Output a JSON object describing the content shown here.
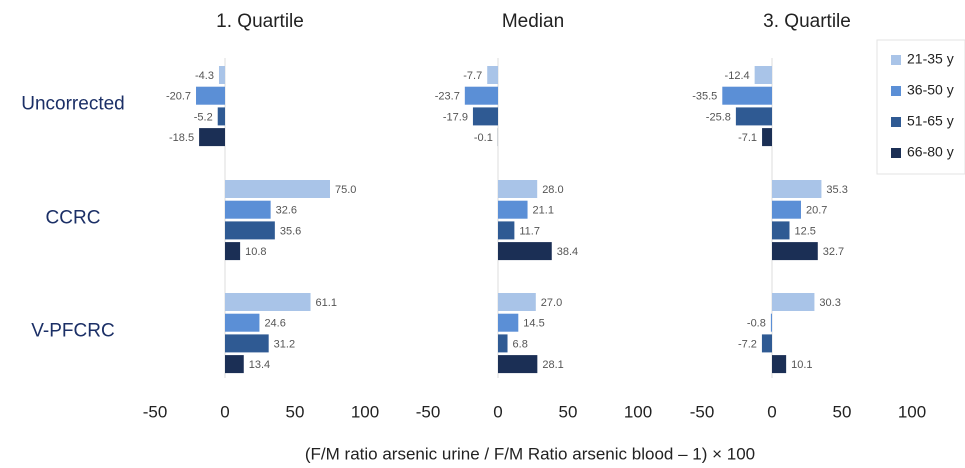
{
  "chart_data": {
    "type": "bar",
    "orientation": "horizontal",
    "x_label": "(F/M ratio arsenic urine / F/M Ratio arsenic blood – 1) × 100",
    "categories": [
      "Uncorrected",
      "CCRC",
      "V-PFCRC"
    ],
    "series": [
      {
        "name": "21-35 y",
        "color": "#a9c4e8"
      },
      {
        "name": "36-50 y",
        "color": "#5b8fd6"
      },
      {
        "name": "51-65 y",
        "color": "#2f5a93"
      },
      {
        "name": "66-80 y",
        "color": "#1b2f55"
      }
    ],
    "xlim": [
      -50,
      100
    ],
    "xticks": [
      -50,
      0,
      50,
      100
    ],
    "panels": [
      {
        "title": "1. Quartile",
        "series": [
          {
            "values": [
              -4.3,
              75.0,
              61.1
            ],
            "value_labels": [
              "-4.3",
              "75.0",
              "61.1"
            ]
          },
          {
            "values": [
              -20.7,
              32.6,
              24.6
            ],
            "value_labels": [
              "-20.7",
              "32.6",
              "24.6"
            ]
          },
          {
            "values": [
              -5.2,
              35.6,
              31.2
            ],
            "value_labels": [
              "-5.2",
              "35.6",
              "31.2"
            ]
          },
          {
            "values": [
              -18.5,
              10.8,
              13.4
            ],
            "value_labels": [
              "-18.5",
              "10.8",
              "13.4"
            ]
          }
        ]
      },
      {
        "title": "Median",
        "series": [
          {
            "values": [
              -7.7,
              28.0,
              27.0
            ],
            "value_labels": [
              "-7.7",
              "28.0",
              "27.0"
            ]
          },
          {
            "values": [
              -23.7,
              21.1,
              14.5
            ],
            "value_labels": [
              "-23.7",
              "21.1",
              "14.5"
            ]
          },
          {
            "values": [
              -17.9,
              11.7,
              6.8
            ],
            "value_labels": [
              "-17.9",
              "11.7",
              "6.8"
            ]
          },
          {
            "values": [
              -0.1,
              38.4,
              28.1
            ],
            "value_labels": [
              "-0.1",
              "38.4",
              "28.1"
            ]
          }
        ]
      },
      {
        "title": "3. Quartile",
        "series": [
          {
            "values": [
              -12.4,
              35.3,
              30.3
            ],
            "value_labels": [
              "-12.4",
              "35.3",
              "30.3"
            ]
          },
          {
            "values": [
              -35.5,
              20.7,
              -0.8
            ],
            "value_labels": [
              "-35.5",
              "20.7",
              "-0.8"
            ]
          },
          {
            "values": [
              -25.8,
              12.5,
              -7.2
            ],
            "value_labels": [
              "-25.8",
              "12.5",
              "-7.2"
            ]
          },
          {
            "values": [
              -7.1,
              32.7,
              10.1
            ],
            "value_labels": [
              "-7.1",
              "32.7",
              "10.1"
            ]
          }
        ]
      }
    ]
  }
}
